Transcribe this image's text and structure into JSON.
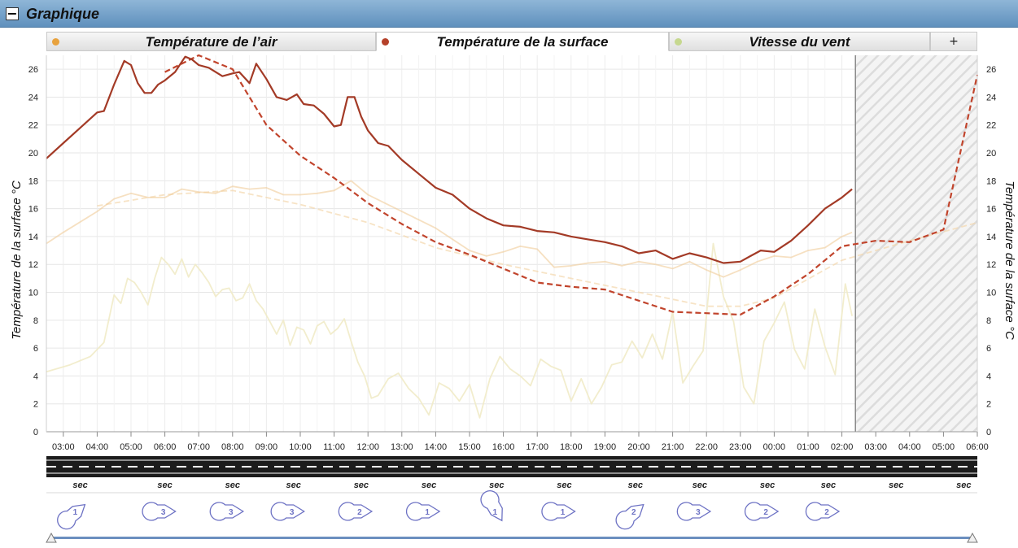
{
  "panel": {
    "title": "Graphique",
    "collapse_symbol": "−"
  },
  "tabs": [
    {
      "label": "Température de l’air",
      "dot_color": "#e8a23d",
      "active": false
    },
    {
      "label": "Température de la surface",
      "dot_color": "#b5412a",
      "active": true
    },
    {
      "label": "Vitesse du vent",
      "dot_color": "#c6d88f",
      "active": false
    }
  ],
  "add_tab_label": "+",
  "icons": {
    "collapse": "minus-square-icon",
    "weather": "wind-direction-marker-icon",
    "slider": "slider-handle-icon"
  },
  "chart_data": {
    "type": "line",
    "ylabel_left": "Température de la surface °C",
    "ylabel_right": "Température de la surface °C",
    "ylim": [
      0,
      27
    ],
    "yticks": [
      0,
      2,
      4,
      6,
      8,
      10,
      12,
      14,
      16,
      18,
      20,
      22,
      24,
      26
    ],
    "x_range_hours": [
      2.5,
      30
    ],
    "x_ticks": [
      "03:00",
      "04:00",
      "05:00",
      "06:00",
      "07:00",
      "08:00",
      "09:00",
      "10:00",
      "11:00",
      "12:00",
      "13:00",
      "14:00",
      "15:00",
      "16:00",
      "17:00",
      "18:00",
      "19:00",
      "20:00",
      "21:00",
      "22:00",
      "23:00",
      "00:00",
      "01:00",
      "02:00",
      "03:00",
      "04:00",
      "05:00",
      "06:00"
    ],
    "now_hour": 26.4,
    "grid": true,
    "series": [
      {
        "id": "surface_measured",
        "color": "#a33a26",
        "style": "solid",
        "opacity": 1,
        "x": [
          2.5,
          3.0,
          3.5,
          4.0,
          4.2,
          4.5,
          4.8,
          5.0,
          5.2,
          5.4,
          5.6,
          5.8,
          6.0,
          6.3,
          6.6,
          6.8,
          7.0,
          7.3,
          7.7,
          8.0,
          8.2,
          8.5,
          8.7,
          9.0,
          9.3,
          9.6,
          9.9,
          10.1,
          10.4,
          10.7,
          11.0,
          11.2,
          11.4,
          11.6,
          11.8,
          12.0,
          12.3,
          12.6,
          13.0,
          13.5,
          14.0,
          14.5,
          15.0,
          15.5,
          16.0,
          16.5,
          17.0,
          17.5,
          18.0,
          18.5,
          19.0,
          19.5,
          20.0,
          20.5,
          21.0,
          21.5,
          22.0,
          22.5,
          23.0,
          23.3,
          23.6,
          24.0,
          24.5,
          25.0,
          25.5,
          26.0,
          26.3
        ],
        "y": [
          19.6,
          20.7,
          21.8,
          22.9,
          23.0,
          24.9,
          26.6,
          26.3,
          25.0,
          24.3,
          24.3,
          24.9,
          25.2,
          25.8,
          26.9,
          26.7,
          26.3,
          26.1,
          25.5,
          25.7,
          25.8,
          25.0,
          26.4,
          25.3,
          24.0,
          23.8,
          24.2,
          23.5,
          23.4,
          22.8,
          21.9,
          22.0,
          24.0,
          24.0,
          22.6,
          21.6,
          20.7,
          20.5,
          19.5,
          18.5,
          17.5,
          17.0,
          16.0,
          15.3,
          14.8,
          14.7,
          14.4,
          14.3,
          14.0,
          13.8,
          13.6,
          13.3,
          12.8,
          13.0,
          12.4,
          12.8,
          12.5,
          12.1,
          12.2,
          12.6,
          13.0,
          12.9,
          13.7,
          14.8,
          16.0,
          16.8,
          17.4
        ]
      },
      {
        "id": "surface_forecast",
        "color": "#c1442c",
        "style": "dashed",
        "opacity": 1,
        "x": [
          6.0,
          7.0,
          8.0,
          9.0,
          10.0,
          11.0,
          12.0,
          13.0,
          14.0,
          15.0,
          16.0,
          17.0,
          18.0,
          19.0,
          20.0,
          21.0,
          22.0,
          23.0,
          24.0,
          25.0,
          26.0,
          27.0,
          28.0,
          29.0,
          30.0
        ],
        "y": [
          25.8,
          27.0,
          26.0,
          22.0,
          19.8,
          18.2,
          16.4,
          14.9,
          13.6,
          12.7,
          11.7,
          10.7,
          10.4,
          10.2,
          9.4,
          8.6,
          8.5,
          8.4,
          9.7,
          11.3,
          13.3,
          13.7,
          13.6,
          14.5,
          25.6
        ]
      },
      {
        "id": "air_measured",
        "color": "#f0cc98",
        "style": "solid",
        "opacity": 0.6,
        "x": [
          2.5,
          3.0,
          4.0,
          4.5,
          5.0,
          5.5,
          6.0,
          6.5,
          7.0,
          7.5,
          8.0,
          8.5,
          9.0,
          9.5,
          10.0,
          10.5,
          11.0,
          11.5,
          12.0,
          12.5,
          13.0,
          13.5,
          14.0,
          14.5,
          15.0,
          15.5,
          16.0,
          16.5,
          17.0,
          17.5,
          18.0,
          18.5,
          19.0,
          19.5,
          20.0,
          20.5,
          21.0,
          21.5,
          22.0,
          22.5,
          23.0,
          23.5,
          24.0,
          24.5,
          25.0,
          25.5,
          26.0,
          26.3
        ],
        "y": [
          13.5,
          14.3,
          15.8,
          16.7,
          17.1,
          16.8,
          16.8,
          17.4,
          17.2,
          17.1,
          17.6,
          17.4,
          17.5,
          17.0,
          17.0,
          17.1,
          17.3,
          18.0,
          17.0,
          16.4,
          15.8,
          15.2,
          14.6,
          13.8,
          13.0,
          12.6,
          12.9,
          13.3,
          13.1,
          11.8,
          11.9,
          12.1,
          12.2,
          11.9,
          12.2,
          12.0,
          11.7,
          12.2,
          11.6,
          11.1,
          11.6,
          12.2,
          12.6,
          12.5,
          13.0,
          13.2,
          14.0,
          14.3
        ]
      },
      {
        "id": "air_forecast",
        "color": "#f3d7ad",
        "style": "dashed",
        "opacity": 0.7,
        "x": [
          4.0,
          6.0,
          8.0,
          10.0,
          12.0,
          14.0,
          16.0,
          18.0,
          20.0,
          22.0,
          23.0,
          24.0,
          26.0,
          28.0,
          30.0
        ],
        "y": [
          16.2,
          17.0,
          17.3,
          16.3,
          15.0,
          13.2,
          12.0,
          11.0,
          10.0,
          9.0,
          9.0,
          9.6,
          12.3,
          13.7,
          15.0
        ]
      },
      {
        "id": "wind_measured",
        "color": "#f1ebc8",
        "style": "solid",
        "opacity": 0.9,
        "x": [
          2.5,
          3.2,
          3.8,
          4.2,
          4.5,
          4.7,
          4.9,
          5.1,
          5.3,
          5.5,
          5.7,
          5.9,
          6.1,
          6.3,
          6.5,
          6.7,
          6.9,
          7.1,
          7.3,
          7.5,
          7.7,
          7.9,
          8.1,
          8.3,
          8.5,
          8.7,
          8.9,
          9.1,
          9.3,
          9.5,
          9.7,
          9.9,
          10.1,
          10.3,
          10.5,
          10.7,
          10.9,
          11.1,
          11.3,
          11.5,
          11.7,
          11.9,
          12.1,
          12.3,
          12.6,
          12.9,
          13.2,
          13.5,
          13.8,
          14.1,
          14.4,
          14.7,
          15.0,
          15.3,
          15.6,
          15.9,
          16.2,
          16.5,
          16.8,
          17.1,
          17.4,
          17.7,
          18.0,
          18.3,
          18.6,
          18.9,
          19.2,
          19.5,
          19.8,
          20.1,
          20.4,
          20.7,
          21.0,
          21.3,
          21.6,
          21.9,
          22.2,
          22.5,
          22.8,
          23.1,
          23.4,
          23.7,
          24.0,
          24.3,
          24.6,
          24.9,
          25.2,
          25.5,
          25.8,
          26.1,
          26.3
        ],
        "y": [
          4.3,
          4.8,
          5.4,
          6.4,
          9.8,
          9.2,
          11.0,
          10.7,
          10.0,
          9.1,
          11.0,
          12.5,
          12.0,
          11.3,
          12.4,
          11.1,
          12.0,
          11.4,
          10.7,
          9.7,
          10.2,
          10.3,
          9.4,
          9.6,
          10.6,
          9.4,
          8.8,
          7.9,
          7.0,
          8.0,
          6.2,
          7.5,
          7.3,
          6.3,
          7.6,
          7.9,
          7.0,
          7.4,
          8.1,
          6.5,
          5.0,
          4.0,
          2.4,
          2.6,
          3.8,
          4.2,
          3.1,
          2.4,
          1.2,
          3.5,
          3.1,
          2.2,
          3.4,
          1.0,
          3.8,
          5.4,
          4.5,
          4.0,
          3.3,
          5.2,
          4.7,
          4.4,
          2.2,
          3.8,
          2.0,
          3.2,
          4.8,
          5.0,
          6.5,
          5.3,
          7.0,
          5.2,
          8.6,
          3.5,
          4.7,
          5.8,
          13.5,
          9.7,
          7.9,
          3.2,
          2.0,
          6.5,
          7.8,
          9.3,
          5.9,
          4.5,
          8.8,
          6.1,
          4.1,
          10.6,
          8.3
        ]
      }
    ]
  },
  "road_conditions": {
    "labels": [
      "sec",
      "sec",
      "sec",
      "sec",
      "sec",
      "sec",
      "sec",
      "sec",
      "sec",
      "sec",
      "sec",
      "sec",
      "sec",
      "sec"
    ],
    "label_hours": [
      3.5,
      6.0,
      8.0,
      9.8,
      11.8,
      13.8,
      15.8,
      17.8,
      19.9,
      21.8,
      23.8,
      25.6,
      27.6,
      29.6
    ]
  },
  "wind_markers": {
    "values": [
      "1",
      "3",
      "3",
      "3",
      "2",
      "1",
      "1",
      "1",
      "2",
      "3",
      "2",
      "2"
    ],
    "hours": [
      3.4,
      6.0,
      8.0,
      9.8,
      11.8,
      13.8,
      15.8,
      17.8,
      19.9,
      21.8,
      23.8,
      25.6
    ],
    "rotations": [
      -40,
      0,
      0,
      0,
      0,
      0,
      60,
      0,
      -40,
      0,
      0,
      0
    ]
  }
}
